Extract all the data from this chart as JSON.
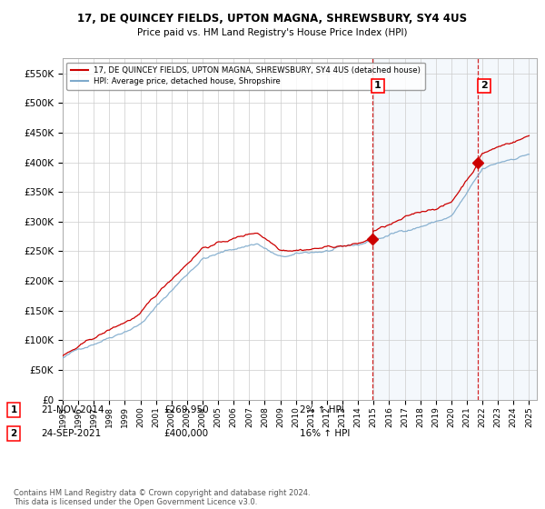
{
  "title": "17, DE QUINCEY FIELDS, UPTON MAGNA, SHREWSBURY, SY4 4US",
  "subtitle": "Price paid vs. HM Land Registry's House Price Index (HPI)",
  "ytick_values": [
    0,
    50000,
    100000,
    150000,
    200000,
    250000,
    300000,
    350000,
    400000,
    450000,
    500000,
    550000
  ],
  "ylim": [
    0,
    575000
  ],
  "xlim_start": 1995.0,
  "xlim_end": 2025.5,
  "hpi_color": "#7eaacc",
  "price_color": "#cc0000",
  "sale1_x": 2014.896,
  "sale1_y": 269950,
  "sale2_x": 2021.73,
  "sale2_y": 400000,
  "sale1_label": "1",
  "sale2_label": "2",
  "sale1_date": "21-NOV-2014",
  "sale1_price": "£269,950",
  "sale1_hpi": "2% ↑ HPI",
  "sale2_date": "24-SEP-2021",
  "sale2_price": "£400,000",
  "sale2_hpi": "16% ↑ HPI",
  "legend_line1": "17, DE QUINCEY FIELDS, UPTON MAGNA, SHREWSBURY, SY4 4US (detached house)",
  "legend_line2": "HPI: Average price, detached house, Shropshire",
  "footnote": "Contains HM Land Registry data © Crown copyright and database right 2024.\nThis data is licensed under the Open Government Licence v3.0.",
  "background_color": "#ffffff",
  "grid_color": "#cccccc",
  "shade_start": 2014.896,
  "shade_end": 2025.5
}
